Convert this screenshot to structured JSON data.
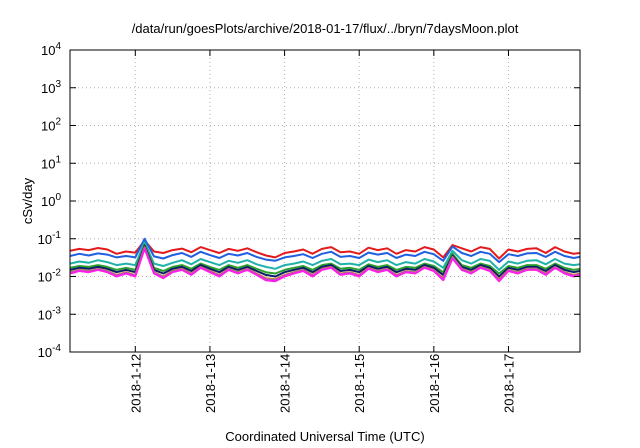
{
  "chart_data": {
    "type": "line",
    "title": "/data/run/goesPlots/archive/2018-01-17/flux/../bryn/7daysMoon.plot",
    "xlabel": "Coordinated Universal Time (UTC)",
    "ylabel": "cSv/day",
    "y_scale": "log",
    "ylim": [
      0.0001,
      10000
    ],
    "xlim": [
      "2018-01-11 03:00",
      "2018-01-17 23:00"
    ],
    "grid": true,
    "legend": "none",
    "y_ticks": [
      {
        "base": "10",
        "exp": "-4",
        "value": 0.0001
      },
      {
        "base": "10",
        "exp": "-3",
        "value": 0.001
      },
      {
        "base": "10",
        "exp": "-2",
        "value": 0.01
      },
      {
        "base": "10",
        "exp": "-1",
        "value": 0.1
      },
      {
        "base": "10",
        "exp": "0",
        "value": 1
      },
      {
        "base": "10",
        "exp": "1",
        "value": 10
      },
      {
        "base": "10",
        "exp": "2",
        "value": 100
      },
      {
        "base": "10",
        "exp": "3",
        "value": 1000
      },
      {
        "base": "10",
        "exp": "4",
        "value": 10000
      }
    ],
    "x_ticks": [
      "2018-1-12",
      "2018-1-13",
      "2018-1-14",
      "2018-1-15",
      "2018-1-16",
      "2018-1-17"
    ],
    "x_times": [
      "2018-01-11 03:00",
      "2018-01-11 06:00",
      "2018-01-11 09:00",
      "2018-01-11 12:00",
      "2018-01-11 15:00",
      "2018-01-11 18:00",
      "2018-01-11 21:00",
      "2018-01-12 00:00",
      "2018-01-12 03:00",
      "2018-01-12 06:00",
      "2018-01-12 09:00",
      "2018-01-12 12:00",
      "2018-01-12 15:00",
      "2018-01-12 18:00",
      "2018-01-12 21:00",
      "2018-01-13 00:00",
      "2018-01-13 03:00",
      "2018-01-13 06:00",
      "2018-01-13 09:00",
      "2018-01-13 12:00",
      "2018-01-13 15:00",
      "2018-01-13 18:00",
      "2018-01-13 21:00",
      "2018-01-14 00:00",
      "2018-01-14 03:00",
      "2018-01-14 06:00",
      "2018-01-14 09:00",
      "2018-01-14 12:00",
      "2018-01-14 15:00",
      "2018-01-14 18:00",
      "2018-01-14 21:00",
      "2018-01-15 00:00",
      "2018-01-15 03:00",
      "2018-01-15 06:00",
      "2018-01-15 09:00",
      "2018-01-15 12:00",
      "2018-01-15 15:00",
      "2018-01-15 18:00",
      "2018-01-15 21:00",
      "2018-01-16 00:00",
      "2018-01-16 03:00",
      "2018-01-16 06:00",
      "2018-01-16 09:00",
      "2018-01-16 12:00",
      "2018-01-16 15:00",
      "2018-01-16 18:00",
      "2018-01-16 21:00",
      "2018-01-17 00:00",
      "2018-01-17 03:00",
      "2018-01-17 06:00",
      "2018-01-17 09:00",
      "2018-01-17 12:00",
      "2018-01-17 15:00",
      "2018-01-17 18:00",
      "2018-01-17 21:00",
      "2018-01-17 23:00"
    ],
    "series": [
      {
        "color": "#e31a1c",
        "values": [
          0.048,
          0.054,
          0.05,
          0.057,
          0.052,
          0.04,
          0.046,
          0.043,
          0.09,
          0.046,
          0.042,
          0.05,
          0.055,
          0.044,
          0.06,
          0.05,
          0.042,
          0.054,
          0.048,
          0.056,
          0.044,
          0.036,
          0.032,
          0.042,
          0.046,
          0.052,
          0.04,
          0.054,
          0.06,
          0.044,
          0.046,
          0.04,
          0.058,
          0.05,
          0.056,
          0.04,
          0.05,
          0.046,
          0.06,
          0.052,
          0.032,
          0.068,
          0.056,
          0.046,
          0.06,
          0.054,
          0.03,
          0.052,
          0.046,
          0.054,
          0.056,
          0.042,
          0.06,
          0.046,
          0.04,
          0.042
        ]
      },
      {
        "color": "#1f5fe0",
        "values": [
          0.035,
          0.04,
          0.036,
          0.041,
          0.038,
          0.032,
          0.035,
          0.032,
          0.1,
          0.034,
          0.03,
          0.037,
          0.042,
          0.033,
          0.045,
          0.037,
          0.031,
          0.04,
          0.036,
          0.042,
          0.033,
          0.028,
          0.026,
          0.032,
          0.035,
          0.039,
          0.031,
          0.04,
          0.045,
          0.033,
          0.035,
          0.031,
          0.043,
          0.038,
          0.042,
          0.031,
          0.038,
          0.035,
          0.045,
          0.039,
          0.026,
          0.062,
          0.042,
          0.035,
          0.045,
          0.04,
          0.024,
          0.039,
          0.035,
          0.041,
          0.042,
          0.033,
          0.045,
          0.035,
          0.031,
          0.033
        ]
      },
      {
        "color": "#20b2aa",
        "values": [
          0.022,
          0.025,
          0.023,
          0.027,
          0.024,
          0.02,
          0.022,
          0.02,
          0.08,
          0.022,
          0.019,
          0.023,
          0.027,
          0.021,
          0.029,
          0.024,
          0.02,
          0.026,
          0.023,
          0.027,
          0.021,
          0.018,
          0.016,
          0.02,
          0.022,
          0.025,
          0.02,
          0.026,
          0.029,
          0.021,
          0.022,
          0.02,
          0.028,
          0.024,
          0.027,
          0.02,
          0.024,
          0.022,
          0.029,
          0.025,
          0.017,
          0.048,
          0.027,
          0.022,
          0.029,
          0.026,
          0.015,
          0.025,
          0.022,
          0.026,
          0.027,
          0.021,
          0.029,
          0.022,
          0.02,
          0.021
        ]
      },
      {
        "color": "#2ca02c",
        "values": [
          0.017,
          0.019,
          0.018,
          0.02,
          0.018,
          0.015,
          0.017,
          0.015,
          0.07,
          0.017,
          0.014,
          0.018,
          0.02,
          0.016,
          0.022,
          0.018,
          0.015,
          0.02,
          0.017,
          0.02,
          0.016,
          0.013,
          0.012,
          0.015,
          0.017,
          0.019,
          0.015,
          0.02,
          0.022,
          0.016,
          0.017,
          0.015,
          0.021,
          0.018,
          0.02,
          0.015,
          0.018,
          0.017,
          0.022,
          0.019,
          0.013,
          0.04,
          0.02,
          0.017,
          0.022,
          0.019,
          0.012,
          0.019,
          0.017,
          0.02,
          0.02,
          0.016,
          0.022,
          0.017,
          0.015,
          0.016
        ]
      },
      {
        "color": "#0b1e6b",
        "values": [
          0.015,
          0.017,
          0.016,
          0.018,
          0.016,
          0.013,
          0.015,
          0.013,
          0.065,
          0.015,
          0.012,
          0.016,
          0.018,
          0.014,
          0.02,
          0.016,
          0.013,
          0.018,
          0.015,
          0.018,
          0.014,
          0.011,
          0.01,
          0.013,
          0.015,
          0.017,
          0.013,
          0.018,
          0.02,
          0.014,
          0.015,
          0.013,
          0.019,
          0.016,
          0.018,
          0.013,
          0.016,
          0.015,
          0.02,
          0.017,
          0.011,
          0.036,
          0.018,
          0.015,
          0.02,
          0.017,
          0.01,
          0.017,
          0.015,
          0.018,
          0.018,
          0.014,
          0.02,
          0.015,
          0.013,
          0.014
        ]
      },
      {
        "color": "#e07b1f",
        "values": [
          0.013,
          0.015,
          0.014,
          0.016,
          0.014,
          0.011,
          0.013,
          0.011,
          0.06,
          0.013,
          0.01,
          0.014,
          0.016,
          0.012,
          0.018,
          0.014,
          0.011,
          0.016,
          0.013,
          0.016,
          0.012,
          0.009,
          0.0085,
          0.011,
          0.013,
          0.015,
          0.011,
          0.016,
          0.018,
          0.012,
          0.013,
          0.011,
          0.017,
          0.014,
          0.016,
          0.011,
          0.014,
          0.013,
          0.018,
          0.015,
          0.009,
          0.033,
          0.016,
          0.013,
          0.018,
          0.015,
          0.0085,
          0.015,
          0.013,
          0.016,
          0.016,
          0.012,
          0.018,
          0.013,
          0.011,
          0.012
        ]
      },
      {
        "color": "#9467bd",
        "values": [
          0.0125,
          0.0145,
          0.0135,
          0.0155,
          0.0135,
          0.0105,
          0.0125,
          0.0105,
          0.058,
          0.0125,
          0.0095,
          0.0135,
          0.0155,
          0.0115,
          0.0175,
          0.0135,
          0.0105,
          0.0155,
          0.0125,
          0.0155,
          0.0115,
          0.0085,
          0.008,
          0.0105,
          0.0125,
          0.0145,
          0.0105,
          0.0155,
          0.0175,
          0.0115,
          0.0125,
          0.0105,
          0.0165,
          0.0135,
          0.0155,
          0.0105,
          0.0135,
          0.0125,
          0.0175,
          0.0145,
          0.0085,
          0.032,
          0.0155,
          0.0125,
          0.0175,
          0.0145,
          0.008,
          0.0145,
          0.0125,
          0.0155,
          0.0155,
          0.0115,
          0.0175,
          0.0125,
          0.0105,
          0.0115
        ]
      },
      {
        "color": "#ff1ee8",
        "values": [
          0.012,
          0.014,
          0.013,
          0.015,
          0.013,
          0.01,
          0.012,
          0.01,
          0.055,
          0.012,
          0.009,
          0.013,
          0.015,
          0.011,
          0.017,
          0.013,
          0.01,
          0.015,
          0.012,
          0.015,
          0.011,
          0.008,
          0.0075,
          0.01,
          0.012,
          0.014,
          0.01,
          0.015,
          0.017,
          0.011,
          0.012,
          0.01,
          0.016,
          0.013,
          0.015,
          0.01,
          0.013,
          0.012,
          0.017,
          0.014,
          0.008,
          0.03,
          0.015,
          0.012,
          0.017,
          0.014,
          0.0075,
          0.014,
          0.012,
          0.015,
          0.015,
          0.011,
          0.017,
          0.012,
          0.01,
          0.011
        ]
      }
    ]
  }
}
